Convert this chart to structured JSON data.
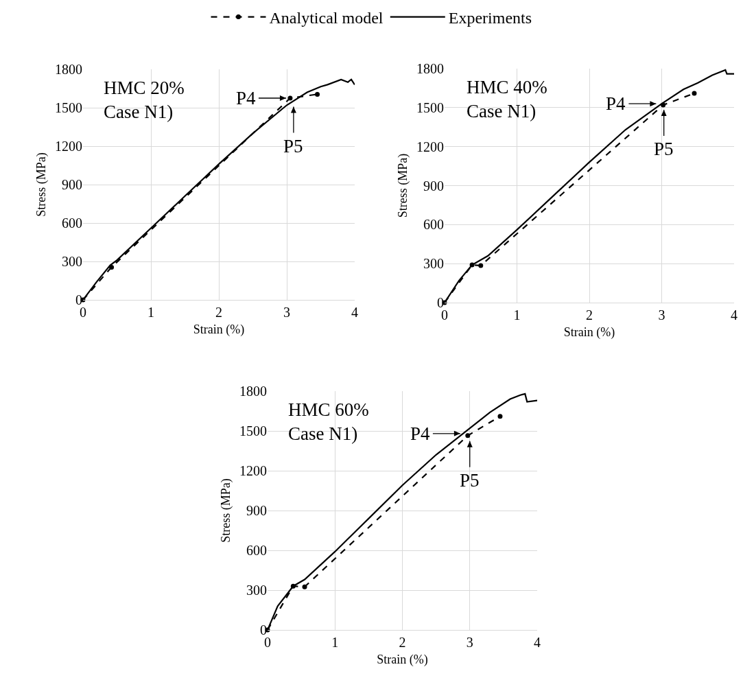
{
  "chart_data": [
    {
      "type": "line",
      "xlabel": "Strain (%)",
      "ylabel": "Stress (MPa)",
      "xlim": [
        0,
        4
      ],
      "xticks": [
        0,
        1,
        2,
        3,
        4
      ],
      "ylim": [
        0,
        1800
      ],
      "yticks": [
        0,
        300,
        600,
        900,
        1200,
        1500,
        1800
      ],
      "grid": true,
      "legend": "top",
      "series": [
        {
          "name": "Analytical model",
          "color": "#000000",
          "type": "line",
          "marker": "circle",
          "line_style": "dashed",
          "x": [
            0,
            0.42,
            3.05,
            3.45
          ],
          "values": [
            0,
            255,
            1575,
            1605
          ]
        },
        {
          "name": "Experiments",
          "color": "#000000",
          "type": "line",
          "marker": "none",
          "line_style": "solid",
          "x": [
            0,
            0.2,
            0.4,
            0.5,
            1,
            1.5,
            2,
            2.5,
            3,
            3.3,
            3.5,
            3.6,
            3.8,
            3.9,
            3.95,
            4
          ],
          "values": [
            0,
            140,
            270,
            310,
            560,
            810,
            1060,
            1300,
            1520,
            1620,
            1665,
            1680,
            1720,
            1700,
            1720,
            1680
          ]
        }
      ],
      "annotations": [
        "HMC 20%\nCase N1)",
        {
          "text": "P4",
          "x": 3.05,
          "y": 1575
        },
        {
          "text": "P5",
          "x": 3.1,
          "y": 1540
        }
      ]
    },
    {
      "type": "line",
      "xlabel": "Strain (%)",
      "ylabel": "Stress (MPa)",
      "xlim": [
        0,
        4
      ],
      "xticks": [
        0,
        1,
        2,
        3,
        4
      ],
      "ylim": [
        0,
        1800
      ],
      "yticks": [
        0,
        300,
        600,
        900,
        1200,
        1500,
        1800
      ],
      "grid": true,
      "series": [
        {
          "color": "#000000",
          "type": "line",
          "marker": "circle",
          "line_style": "dashed",
          "x": [
            0,
            0.38,
            0.5,
            3.02,
            3.45
          ],
          "values": [
            0,
            290,
            285,
            1520,
            1610
          ]
        },
        {
          "color": "#000000",
          "type": "line",
          "marker": "none",
          "line_style": "solid",
          "x": [
            0,
            0.2,
            0.38,
            0.6,
            1,
            1.5,
            2,
            2.5,
            3,
            3.3,
            3.5,
            3.7,
            3.88,
            3.9,
            4
          ],
          "values": [
            0,
            170,
            290,
            360,
            560,
            820,
            1080,
            1330,
            1530,
            1640,
            1690,
            1750,
            1790,
            1760,
            1760
          ]
        }
      ],
      "annotations": [
        "HMC 40%\nCase N1)",
        {
          "text": "P4",
          "x": 2.98,
          "y": 1530
        },
        {
          "text": "P5",
          "x": 3.03,
          "y": 1515
        }
      ]
    },
    {
      "type": "line",
      "xlabel": "Strain (%)",
      "ylabel": "Stress (MPa)",
      "xlim": [
        0,
        4
      ],
      "xticks": [
        0,
        1,
        2,
        3,
        4
      ],
      "ylim": [
        0,
        1800
      ],
      "yticks": [
        0,
        300,
        600,
        900,
        1200,
        1500,
        1800
      ],
      "grid": true,
      "series": [
        {
          "color": "#000000",
          "type": "line",
          "marker": "circle",
          "line_style": "dashed",
          "x": [
            0,
            0.38,
            0.55,
            2.97,
            3.45
          ],
          "values": [
            0,
            330,
            325,
            1465,
            1610
          ]
        },
        {
          "color": "#000000",
          "type": "line",
          "marker": "none",
          "line_style": "solid",
          "x": [
            0,
            0.15,
            0.38,
            0.55,
            1,
            1.5,
            2,
            2.5,
            3,
            3.3,
            3.6,
            3.75,
            3.82,
            3.85,
            4
          ],
          "values": [
            0,
            180,
            330,
            380,
            590,
            840,
            1090,
            1320,
            1520,
            1640,
            1740,
            1770,
            1780,
            1720,
            1730
          ]
        }
      ],
      "annotations": [
        "HMC 60%\nCase N1)",
        {
          "text": "P4",
          "x": 2.92,
          "y": 1480
        },
        {
          "text": "P5",
          "x": 3.0,
          "y": 1455
        }
      ]
    }
  ]
}
